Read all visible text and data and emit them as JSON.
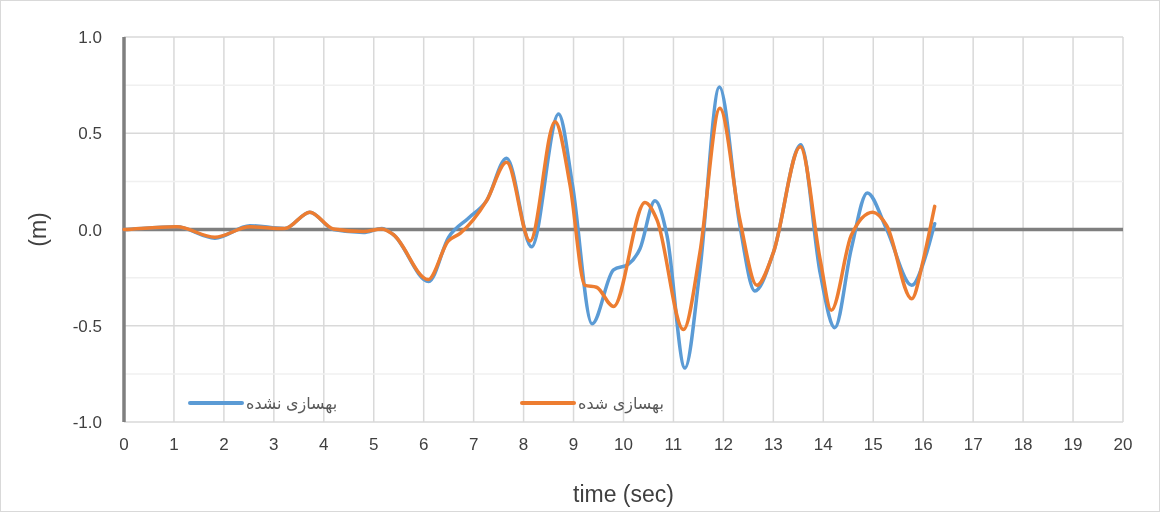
{
  "chart_data": {
    "type": "line",
    "xlabel": "time (sec)",
    "ylabel": "(m)",
    "xlim": [
      0,
      20
    ],
    "xticks": [
      0,
      1,
      2,
      3,
      4,
      5,
      6,
      7,
      8,
      9,
      10,
      11,
      12,
      13,
      14,
      15,
      16,
      17,
      18,
      19,
      20
    ],
    "ylim": [
      -1,
      1
    ],
    "yticks": [
      {
        "value": -1,
        "label": "-1.0"
      },
      {
        "value": -0.75,
        "label": null
      },
      {
        "value": -0.5,
        "label": "-0.5"
      },
      {
        "value": -0.25,
        "label": null
      },
      {
        "value": 0,
        "label": "0.0"
      },
      {
        "value": 0.25,
        "label": null
      },
      {
        "value": 0.5,
        "label": "0.5"
      },
      {
        "value": 0.75,
        "label": null
      },
      {
        "value": 1,
        "label": "1.0"
      }
    ],
    "grid": true,
    "legend": "bottom",
    "marker": "none",
    "line_style": "solid",
    "series": [
      {
        "name": "بهسازی نشده",
        "color": "#5b9bd5",
        "x": [
          0,
          1.05,
          1.82,
          2.52,
          3.22,
          3.72,
          4.19,
          4.79,
          5.16,
          5.39,
          6.1,
          6.5,
          6.9,
          7.26,
          7.66,
          8.16,
          8.7,
          8.98,
          9.37,
          9.8,
          10.1,
          10.33,
          10.63,
          10.87,
          11.23,
          11.53,
          11.92,
          12.33,
          12.63,
          13.0,
          13.55,
          13.94,
          14.23,
          14.56,
          14.88,
          15.27,
          15.77,
          16.07,
          16.23
        ],
        "values": [
          0,
          0.014,
          -0.045,
          0.02,
          0.005,
          0.09,
          0,
          -0.015,
          0.005,
          -0.026,
          -0.27,
          -0.04,
          0.06,
          0.15,
          0.37,
          -0.09,
          0.6,
          0.23,
          -0.49,
          -0.21,
          -0.18,
          -0.1,
          0.15,
          -0.03,
          -0.72,
          -0.21,
          0.74,
          0.02,
          -0.32,
          -0.12,
          0.44,
          -0.23,
          -0.51,
          -0.1,
          0.19,
          0,
          -0.29,
          -0.12,
          0.03
        ]
      },
      {
        "name": "بهسازی شده",
        "color": "#ed7d31",
        "x": [
          0,
          1.05,
          1.82,
          2.52,
          3.22,
          3.72,
          4.19,
          4.79,
          5.16,
          5.39,
          6.09,
          6.49,
          6.73,
          7.26,
          7.66,
          8.13,
          8.63,
          8.93,
          9.23,
          9.46,
          9.8,
          10.43,
          10.67,
          11.2,
          11.53,
          11.93,
          12.33,
          12.67,
          13.0,
          13.54,
          13.94,
          14.16,
          14.56,
          14.99,
          15.27,
          15.77,
          16.0,
          16.23
        ],
        "values": [
          0,
          0.014,
          -0.04,
          0.014,
          0.005,
          0.09,
          0.003,
          -0.01,
          0.003,
          -0.026,
          -0.26,
          -0.06,
          -0.02,
          0.15,
          0.35,
          -0.06,
          0.56,
          0.23,
          -0.29,
          -0.3,
          -0.4,
          0.14,
          0.05,
          -0.52,
          -0.12,
          0.63,
          0.05,
          -0.29,
          -0.12,
          0.43,
          -0.16,
          -0.42,
          -0.03,
          0.09,
          0.02,
          -0.36,
          -0.16,
          0.12
        ]
      }
    ]
  }
}
